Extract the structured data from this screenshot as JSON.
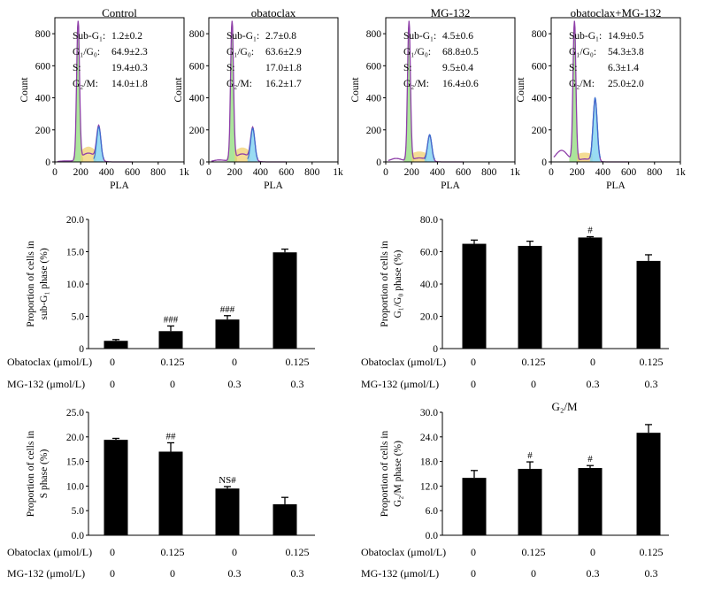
{
  "chart_data": [
    {
      "type": "area",
      "title": "Control",
      "xlabel": "PLA",
      "ylabel": "Count",
      "xticks": [
        "0",
        "200",
        "400",
        "600",
        "800",
        "1k"
      ],
      "yticks": [
        "0",
        "200",
        "400",
        "600",
        "800"
      ],
      "xlim": [
        0,
        1000
      ],
      "ylim": [
        0,
        900
      ],
      "stats": [
        {
          "label": "Sub-G₁:",
          "value": "1.2±0.2"
        },
        {
          "label": "G₁/G₀:",
          "value": "64.9±2.3"
        },
        {
          "label": "S:",
          "value": "19.4±0.3"
        },
        {
          "label": "G₂/M:",
          "value": "14.0±1.8"
        }
      ]
    },
    {
      "type": "area",
      "title": "obatoclax",
      "xlabel": "PLA",
      "ylabel": "Count",
      "xticks": [
        "0",
        "200",
        "400",
        "600",
        "800",
        "1k"
      ],
      "yticks": [
        "0",
        "200",
        "400",
        "600",
        "800"
      ],
      "xlim": [
        0,
        1000
      ],
      "ylim": [
        0,
        900
      ],
      "stats": [
        {
          "label": "Sub-G₁:",
          "value": "2.7±0.8"
        },
        {
          "label": "G₁/G₀:",
          "value": "63.6±2.9"
        },
        {
          "label": "S:",
          "value": "17.0±1.8"
        },
        {
          "label": "G₂/M:",
          "value": "16.2±1.7"
        }
      ]
    },
    {
      "type": "area",
      "title": "MG-132",
      "xlabel": "PLA",
      "ylabel": "Count",
      "xticks": [
        "0",
        "200",
        "400",
        "600",
        "800",
        "1k"
      ],
      "yticks": [
        "0",
        "200",
        "400",
        "600",
        "800"
      ],
      "xlim": [
        0,
        1000
      ],
      "ylim": [
        0,
        900
      ],
      "stats": [
        {
          "label": "Sub-G₁:",
          "value": "4.5±0.6"
        },
        {
          "label": "G₁/G₀:",
          "value": "68.8±0.5"
        },
        {
          "label": "S:",
          "value": "9.5±0.4"
        },
        {
          "label": "G₂/M:",
          "value": "16.4±0.6"
        }
      ]
    },
    {
      "type": "area",
      "title": "obatoclax+MG-132",
      "xlabel": "PLA",
      "ylabel": "Count",
      "xticks": [
        "0",
        "200",
        "400",
        "600",
        "800",
        "1k"
      ],
      "yticks": [
        "0",
        "200",
        "400",
        "600",
        "800"
      ],
      "xlim": [
        0,
        1000
      ],
      "ylim": [
        0,
        900
      ],
      "stats": [
        {
          "label": "Sub-G₁:",
          "value": "14.9±0.5"
        },
        {
          "label": "G₁/G₀:",
          "value": "54.3±3.8"
        },
        {
          "label": "S:",
          "value": "6.3±1.4"
        },
        {
          "label": "G₂/M:",
          "value": "25.0±2.0"
        }
      ]
    },
    {
      "type": "bar",
      "title": "",
      "ylabel": [
        "Proportion of cells in",
        "sub-G₁ phase (%)"
      ],
      "ylim": [
        0,
        20
      ],
      "yticks": [
        "0",
        "5.0",
        "10.0",
        "15.0",
        "20.0"
      ],
      "values": [
        1.2,
        2.7,
        4.5,
        14.9
      ],
      "errors": [
        0.2,
        0.8,
        0.6,
        0.5
      ],
      "annotations": [
        "",
        "###",
        "###",
        ""
      ],
      "obatoclax": [
        "0",
        "0.125",
        "0",
        "0.125"
      ],
      "mg132": [
        "0",
        "0",
        "0.3",
        "0.3"
      ]
    },
    {
      "type": "bar",
      "title": "",
      "ylabel": [
        "Proportion of cells in",
        "G₁/G₀ phase (%)"
      ],
      "ylim": [
        0,
        80
      ],
      "yticks": [
        "0",
        "20.0",
        "40.0",
        "60.0",
        "80.0"
      ],
      "values": [
        64.9,
        63.6,
        68.8,
        54.3
      ],
      "errors": [
        2.3,
        2.9,
        0.5,
        3.8
      ],
      "annotations": [
        "",
        "",
        "#",
        ""
      ],
      "obatoclax": [
        "0",
        "0.125",
        "0",
        "0.125"
      ],
      "mg132": [
        "0",
        "0",
        "0.3",
        "0.3"
      ]
    },
    {
      "type": "bar",
      "title": "",
      "ylabel": [
        "Proportion of cells in",
        "S phase (%)"
      ],
      "ylim": [
        0,
        25
      ],
      "yticks": [
        "0.0",
        "5.0",
        "10.0",
        "15.0",
        "20.0",
        "25.0"
      ],
      "values": [
        19.4,
        17.0,
        9.5,
        6.3
      ],
      "errors": [
        0.3,
        1.8,
        0.4,
        1.4
      ],
      "annotations": [
        "",
        "##",
        "NS#",
        ""
      ],
      "obatoclax": [
        "0",
        "0.125",
        "0",
        "0.125"
      ],
      "mg132": [
        "0",
        "0",
        "0.3",
        "0.3"
      ]
    },
    {
      "type": "bar",
      "title": "G₂/M",
      "ylabel": [
        "Proportion of cells in",
        "G₂/M phase (%)"
      ],
      "ylim": [
        0,
        30
      ],
      "yticks": [
        "0.0",
        "6.0",
        "12.0",
        "18.0",
        "24.0",
        "30.0"
      ],
      "values": [
        14.0,
        16.2,
        16.4,
        25.0
      ],
      "errors": [
        1.8,
        1.7,
        0.6,
        2.0
      ],
      "annotations": [
        "",
        "#",
        "#",
        ""
      ],
      "obatoclax": [
        "0",
        "0.125",
        "0",
        "0.125"
      ],
      "mg132": [
        "0",
        "0",
        "0.3",
        "0.3"
      ]
    }
  ],
  "labels": {
    "obatoclax_row": "Obatoclax (μmol/L)",
    "mg132_row": "MG-132 (μmol/L)"
  },
  "colors": {
    "g1_peak": "#8e3fa8",
    "g1_fill": "#8fdc7a",
    "s_fill": "#f0d070",
    "g2_fill": "#7fd3f0",
    "g2_line": "#3a6fd0",
    "bar": "#000000"
  }
}
